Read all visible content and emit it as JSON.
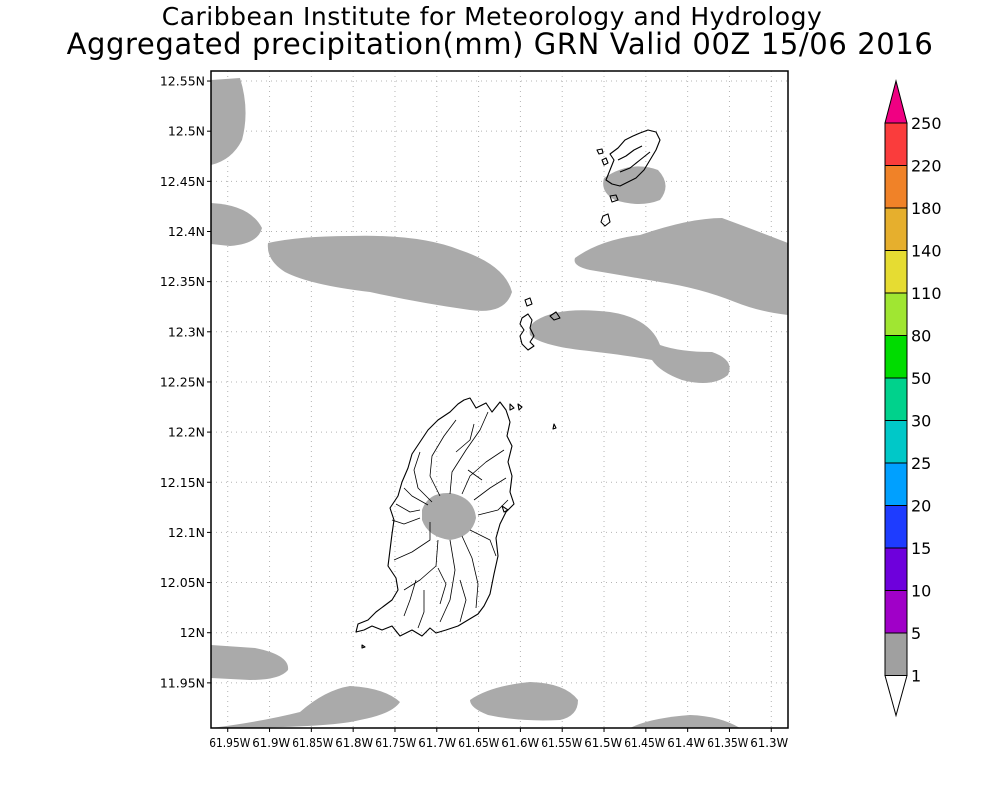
{
  "title_line1": "Caribbean Institute for Meteorology and Hydrology",
  "title_line2": "Aggregated precipitation(mm) GRN Valid 00Z 15/06 2016",
  "map": {
    "lon_range": [
      -61.97,
      -61.28
    ],
    "lat_range": [
      11.905,
      12.56
    ],
    "lat_ticks": [
      {
        "value": 12.55,
        "label": "12.55N"
      },
      {
        "value": 12.5,
        "label": "12.5N"
      },
      {
        "value": 12.45,
        "label": "12.45N"
      },
      {
        "value": 12.4,
        "label": "12.4N"
      },
      {
        "value": 12.35,
        "label": "12.35N"
      },
      {
        "value": 12.3,
        "label": "12.3N"
      },
      {
        "value": 12.25,
        "label": "12.25N"
      },
      {
        "value": 12.2,
        "label": "12.2N"
      },
      {
        "value": 12.15,
        "label": "12.15N"
      },
      {
        "value": 12.1,
        "label": "12.1N"
      },
      {
        "value": 12.05,
        "label": "12.05N"
      },
      {
        "value": 12.0,
        "label": "12N"
      },
      {
        "value": 11.95,
        "label": "11.95N"
      }
    ],
    "lon_ticks": [
      {
        "value": -61.95,
        "label": "61.95W"
      },
      {
        "value": -61.9,
        "label": "61.9W"
      },
      {
        "value": -61.85,
        "label": "61.85W"
      },
      {
        "value": -61.8,
        "label": "61.8W"
      },
      {
        "value": -61.75,
        "label": "61.75W"
      },
      {
        "value": -61.7,
        "label": "61.7W"
      },
      {
        "value": -61.65,
        "label": "61.65W"
      },
      {
        "value": -61.6,
        "label": "61.6W"
      },
      {
        "value": -61.55,
        "label": "61.55W"
      },
      {
        "value": -61.5,
        "label": "61.5W"
      },
      {
        "value": -61.45,
        "label": "61.45W"
      },
      {
        "value": -61.4,
        "label": "61.4W"
      },
      {
        "value": -61.35,
        "label": "61.35W"
      },
      {
        "value": -61.3,
        "label": "61.3W"
      }
    ],
    "grid": "dotted",
    "precip_color": "#aaaaaa",
    "coast_color": "#000000"
  },
  "colorbar": {
    "levels": [
      "1",
      "5",
      "10",
      "15",
      "20",
      "25",
      "30",
      "50",
      "80",
      "110",
      "140",
      "180",
      "220",
      "250"
    ],
    "colors": [
      "#ffffff",
      "#a0a0a0",
      "#a000c8",
      "#6e00dc",
      "#1e3cff",
      "#00a0ff",
      "#00c8c8",
      "#00d28c",
      "#00dc00",
      "#a0e632",
      "#e6dc32",
      "#e6af2d",
      "#f08228",
      "#fa3c3c",
      "#f00082"
    ]
  }
}
